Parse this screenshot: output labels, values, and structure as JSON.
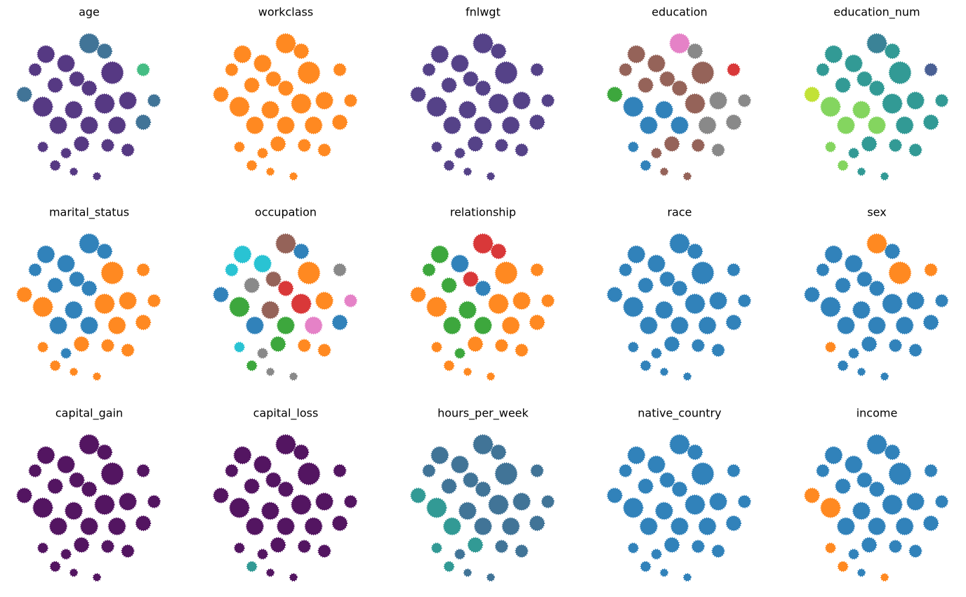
{
  "embedding": {
    "x": [
      50,
      60,
      22,
      35,
      15,
      65,
      85,
      42,
      50,
      28,
      8,
      20,
      40,
      60,
      75,
      92,
      30,
      50,
      68,
      85,
      45,
      62,
      20,
      75,
      28,
      40,
      55,
      35
    ],
    "y": [
      9,
      14,
      16,
      22,
      26,
      28,
      26,
      32,
      38,
      36,
      42,
      50,
      52,
      48,
      46,
      46,
      62,
      62,
      62,
      60,
      74,
      75,
      76,
      78,
      88,
      92,
      95,
      80
    ],
    "size": [
      8,
      6,
      7,
      7,
      5,
      9,
      5,
      6,
      6,
      6,
      6,
      8,
      7,
      8,
      7,
      5,
      7,
      7,
      7,
      6,
      6,
      5,
      4,
      5,
      4,
      3,
      3,
      4
    ]
  },
  "chart_data": [
    {
      "type": "scatter",
      "title": "age",
      "series": [
        {
          "color": "#482878",
          "points": [
            2,
            3,
            4,
            5,
            7,
            8,
            9,
            11,
            12,
            13,
            14,
            16,
            17,
            18,
            20,
            21,
            22,
            23,
            24,
            25,
            26,
            27
          ]
        },
        {
          "color": "#31688e",
          "points": [
            0,
            1,
            10,
            15,
            19
          ]
        },
        {
          "color": "#35b779",
          "points": [
            6
          ]
        }
      ]
    },
    {
      "type": "scatter",
      "title": "workclass",
      "series": [
        {
          "color": "#ff7f0e",
          "points": [
            0,
            1,
            2,
            3,
            4,
            5,
            6,
            7,
            8,
            9,
            10,
            11,
            12,
            13,
            14,
            15,
            16,
            17,
            18,
            19,
            20,
            21,
            22,
            23,
            24,
            25,
            26,
            27
          ]
        }
      ]
    },
    {
      "type": "scatter",
      "title": "fnlwgt",
      "series": [
        {
          "color": "#46327e",
          "points": [
            0,
            1,
            2,
            3,
            4,
            5,
            6,
            7,
            8,
            9,
            10,
            11,
            12,
            13,
            14,
            15,
            16,
            17,
            18,
            19,
            20,
            21,
            22,
            23,
            24,
            25,
            26,
            27
          ]
        }
      ]
    },
    {
      "type": "scatter",
      "title": "education",
      "series": [
        {
          "color": "#1f77b4",
          "points": [
            11,
            12,
            16,
            17,
            22,
            24
          ]
        },
        {
          "color": "#7f7f7f",
          "points": [
            1,
            14,
            15,
            18,
            19,
            23
          ]
        },
        {
          "color": "#8c564b",
          "points": [
            2,
            3,
            4,
            5,
            7,
            8,
            9,
            13,
            20,
            21,
            27,
            25,
            26
          ]
        },
        {
          "color": "#d62728",
          "points": [
            6
          ]
        },
        {
          "color": "#e377c2",
          "points": [
            0
          ]
        },
        {
          "color": "#2ca02c",
          "points": [
            10
          ]
        }
      ]
    },
    {
      "type": "scatter",
      "title": "education_num",
      "series": [
        {
          "color": "#21918c",
          "points": [
            1,
            2,
            3,
            4,
            5,
            7,
            8,
            9,
            13,
            14,
            15,
            18,
            19,
            20,
            21,
            23,
            27,
            25,
            26
          ]
        },
        {
          "color": "#7ad151",
          "points": [
            11,
            12,
            16,
            17,
            22,
            24
          ]
        },
        {
          "color": "#bddf26",
          "points": [
            10
          ]
        },
        {
          "color": "#2a788e",
          "points": [
            0
          ]
        },
        {
          "color": "#3b528b",
          "points": [
            6
          ]
        }
      ]
    },
    {
      "type": "scatter",
      "title": "marital_status",
      "series": [
        {
          "color": "#1f77b4",
          "points": [
            0,
            1,
            2,
            3,
            4,
            7,
            8,
            9,
            12,
            16,
            17,
            27
          ]
        },
        {
          "color": "#ff7f0e",
          "points": [
            5,
            6,
            10,
            11,
            13,
            14,
            15,
            18,
            19,
            20,
            21,
            22,
            23,
            24,
            25,
            26
          ]
        }
      ]
    },
    {
      "type": "scatter",
      "title": "occupation",
      "series": [
        {
          "color": "#1f77b4",
          "points": [
            1,
            10,
            16,
            19
          ]
        },
        {
          "color": "#2ca02c",
          "points": [
            11,
            17,
            20,
            24
          ]
        },
        {
          "color": "#8c564b",
          "points": [
            0,
            7,
            12
          ]
        },
        {
          "color": "#ff7f0e",
          "points": [
            5,
            14,
            21,
            23
          ]
        },
        {
          "color": "#d62728",
          "points": [
            13,
            8
          ]
        },
        {
          "color": "#17becf",
          "points": [
            2,
            3,
            4,
            22
          ]
        },
        {
          "color": "#e377c2",
          "points": [
            15,
            18
          ]
        },
        {
          "color": "#7f7f7f",
          "points": [
            9,
            6,
            25,
            26,
            27
          ]
        }
      ]
    },
    {
      "type": "scatter",
      "title": "relationship",
      "series": [
        {
          "color": "#ff7f0e",
          "points": [
            5,
            6,
            10,
            11,
            13,
            14,
            15,
            18,
            19,
            20,
            21,
            22,
            23,
            24,
            25,
            26
          ]
        },
        {
          "color": "#2ca02c",
          "points": [
            2,
            4,
            9,
            12,
            16,
            17,
            27
          ]
        },
        {
          "color": "#d62728",
          "points": [
            0,
            1,
            7
          ]
        },
        {
          "color": "#1f77b4",
          "points": [
            3,
            8
          ]
        }
      ]
    },
    {
      "type": "scatter",
      "title": "race",
      "series": [
        {
          "color": "#1f77b4",
          "points": [
            0,
            1,
            2,
            3,
            4,
            5,
            6,
            7,
            8,
            9,
            10,
            11,
            12,
            13,
            14,
            15,
            16,
            17,
            18,
            19,
            20,
            21,
            22,
            23,
            24,
            25,
            26,
            27
          ]
        }
      ]
    },
    {
      "type": "scatter",
      "title": "sex",
      "series": [
        {
          "color": "#1f77b4",
          "points": [
            1,
            2,
            3,
            4,
            7,
            8,
            9,
            10,
            11,
            12,
            13,
            14,
            15,
            16,
            17,
            18,
            19,
            20,
            21,
            23,
            24,
            25,
            26,
            27
          ]
        },
        {
          "color": "#ff7f0e",
          "points": [
            0,
            5,
            6,
            22
          ]
        }
      ]
    },
    {
      "type": "scatter",
      "title": "capital_gain",
      "series": [
        {
          "color": "#440154",
          "points": [
            0,
            1,
            2,
            3,
            4,
            5,
            6,
            7,
            8,
            9,
            10,
            11,
            12,
            13,
            14,
            15,
            16,
            17,
            18,
            19,
            20,
            21,
            22,
            23,
            24,
            25,
            26,
            27
          ]
        }
      ]
    },
    {
      "type": "scatter",
      "title": "capital_loss",
      "series": [
        {
          "color": "#440154",
          "points": [
            0,
            1,
            2,
            3,
            4,
            5,
            6,
            7,
            8,
            9,
            10,
            11,
            12,
            13,
            14,
            15,
            16,
            17,
            18,
            19,
            20,
            21,
            22,
            23,
            25,
            26,
            27
          ]
        },
        {
          "color": "#21918c",
          "points": [
            24
          ]
        }
      ]
    },
    {
      "type": "scatter",
      "title": "hours_per_week",
      "series": [
        {
          "color": "#31688e",
          "points": [
            0,
            1,
            2,
            3,
            4,
            5,
            6,
            7,
            8,
            9,
            12,
            13,
            14,
            15,
            17,
            18,
            19,
            21,
            23,
            25,
            26,
            27
          ]
        },
        {
          "color": "#21918c",
          "points": [
            10,
            11,
            16,
            20,
            22,
            24
          ]
        }
      ]
    },
    {
      "type": "scatter",
      "title": "native_country",
      "series": [
        {
          "color": "#1f77b4",
          "points": [
            0,
            1,
            2,
            3,
            4,
            5,
            6,
            7,
            8,
            9,
            10,
            11,
            12,
            13,
            14,
            15,
            16,
            17,
            18,
            19,
            20,
            21,
            22,
            23,
            24,
            25,
            26,
            27
          ]
        }
      ]
    },
    {
      "type": "scatter",
      "title": "income",
      "series": [
        {
          "color": "#1f77b4",
          "points": [
            0,
            1,
            2,
            3,
            4,
            5,
            6,
            7,
            8,
            9,
            12,
            13,
            14,
            15,
            16,
            17,
            18,
            19,
            20,
            21,
            23,
            25,
            27
          ]
        },
        {
          "color": "#ff7f0e",
          "points": [
            10,
            11,
            22,
            24,
            26
          ]
        }
      ]
    }
  ]
}
